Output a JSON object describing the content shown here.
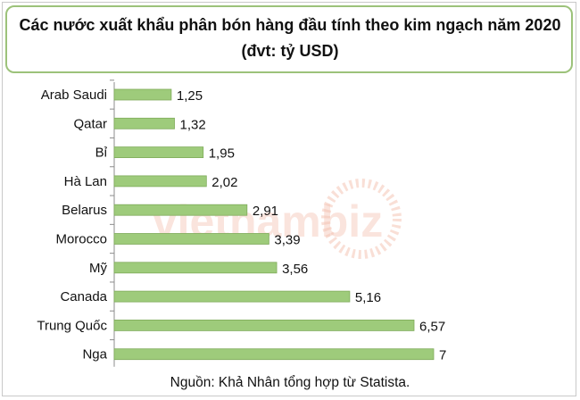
{
  "header": {
    "title_line1": "Các nước xuất khẩu phân bón hàng đầu tính theo kim ngạch năm 2020",
    "title_line2": "(đvt: tỷ USD)"
  },
  "source": "Nguồn: Khả Nhân tổng hợp từ Statista.",
  "watermark": "vietnambiz",
  "colors": {
    "bar": "#9ecb7b",
    "bar_border": "#7fab5a",
    "title_border": "#9cc27a",
    "watermark": "#f4c4b4"
  },
  "chart_data": {
    "type": "bar",
    "orientation": "horizontal",
    "categories": [
      "Arab Saudi",
      "Qatar",
      "Bỉ",
      "Hà Lan",
      "Belarus",
      "Morocco",
      "Mỹ",
      "Canada",
      "Trung Quốc",
      "Nga"
    ],
    "values": [
      1.25,
      1.32,
      1.95,
      2.02,
      2.91,
      3.39,
      3.56,
      5.16,
      6.57,
      7
    ],
    "data_labels": [
      "1,25",
      "1,32",
      "1,95",
      "2,02",
      "2,91",
      "3,39",
      "3,56",
      "5,16",
      "6,57",
      "7"
    ],
    "title": "Các nước xuất khẩu phân bón hàng đầu tính theo kim ngạch năm 2020",
    "subtitle": "(đvt: tỷ USD)",
    "xlim": [
      0,
      7
    ],
    "grid": false,
    "legend": "none"
  }
}
